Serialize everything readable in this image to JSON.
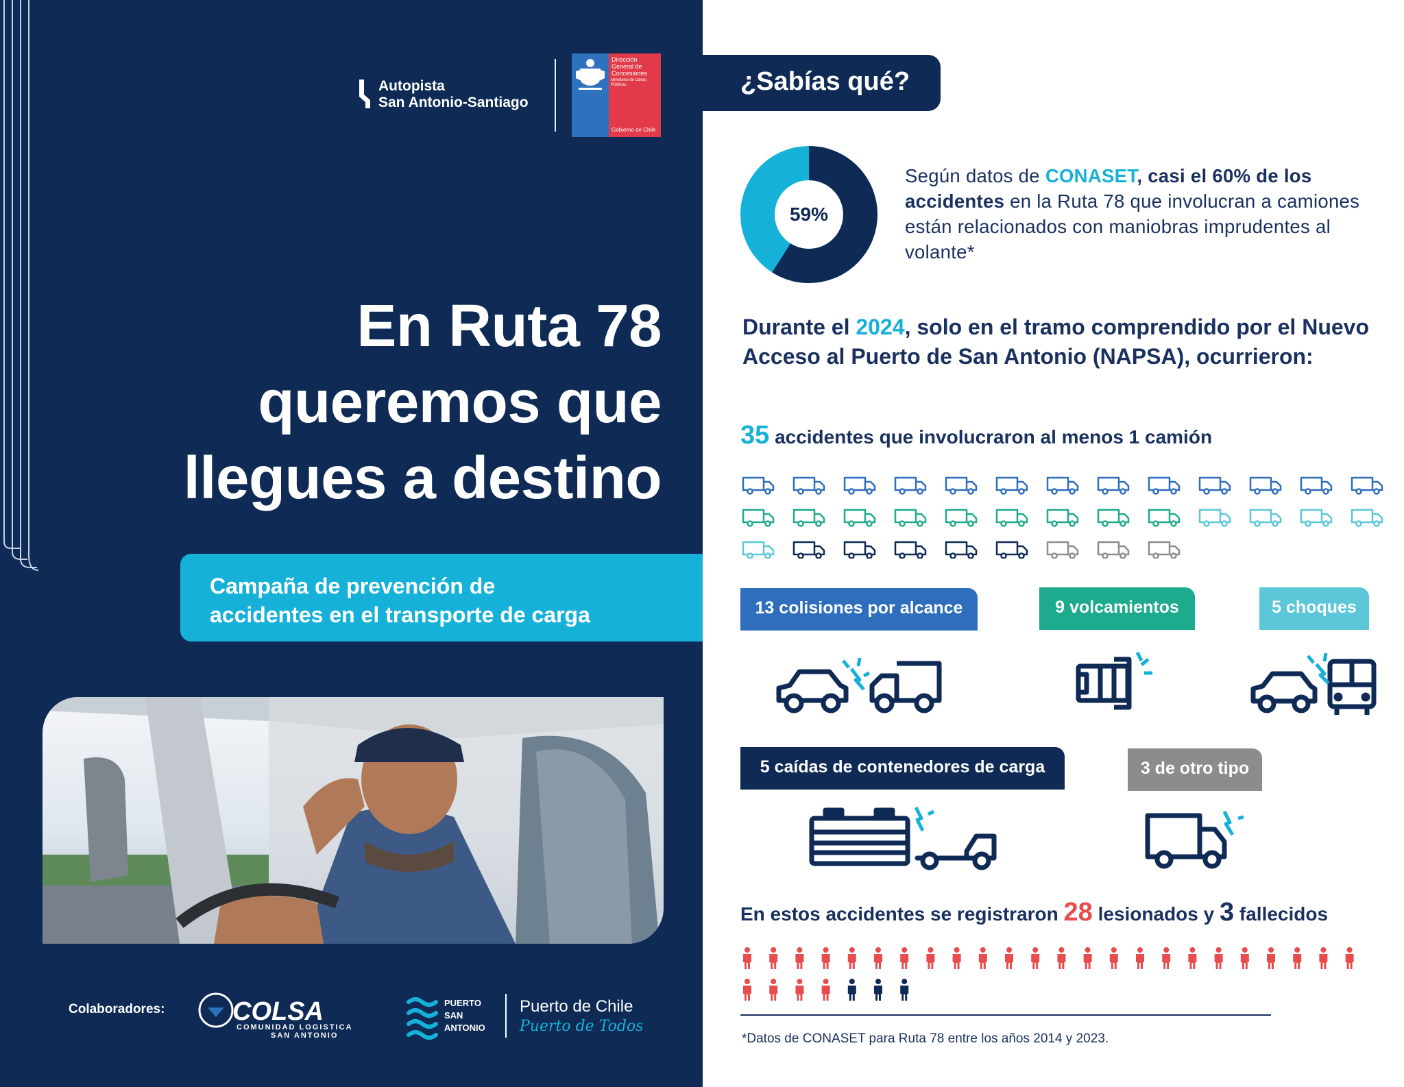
{
  "header": {
    "brand_line1": "Autopista",
    "brand_line2": "San Antonio-Santiago",
    "gov_lines": [
      "Dirección",
      "General de",
      "Concesiones"
    ],
    "gov_ministry": "Ministerio de Obras Públicas",
    "gov_footer": "Gobierno de Chile"
  },
  "hero": {
    "title_lines": [
      "En Ruta 78",
      "queremos que",
      "llegues a destino"
    ],
    "campaign_lines": [
      "Campaña de prevención de",
      "accidentes en el transporte de carga"
    ]
  },
  "collaborators": {
    "label": "Colaboradores:",
    "colsa_name": "COLSA",
    "colsa_sub1": "COMUNIDAD LOGISTICA",
    "colsa_sub2": "SAN ANTONIO",
    "puerto_lines": [
      "PUERTO",
      "SAN",
      "ANTONIO"
    ],
    "puerto_chile": "Puerto de Chile",
    "puerto_todos": "Puerto de Todos"
  },
  "facts": {
    "badge": "¿Sabías qué?",
    "donut_percent": 59,
    "donut_label": "59%",
    "text_pre": "Según datos de ",
    "text_source": "CONASET",
    "text_bold": ", casi el 60% de los accidentes",
    "text_rest": " en la Ruta 78 que involucran a camiones están relacionados con maniobras imprudentes al volante*"
  },
  "period": {
    "pre": "Durante el ",
    "year": "2024",
    "post": ", solo en el tramo comprendido por el Nuevo Acceso al Puerto de San Antonio (NAPSA), ocurrieron:"
  },
  "totals": {
    "count": "35",
    "label": "accidentes que involucraron al menos 1 camión"
  },
  "categories": [
    {
      "label": "13 colisiones por alcance",
      "count": 13,
      "color": "#2f6ebc"
    },
    {
      "label": "9 volcamientos",
      "count": 9,
      "color": "#1eaa8d"
    },
    {
      "label": "5 choques",
      "count": 5,
      "color": "#5bc7d9"
    },
    {
      "label": "5 caídas de contenedores de carga",
      "count": 5,
      "color": "#0e2a55"
    },
    {
      "label": "3 de otro tipo",
      "count": 3,
      "color": "#8c8c8c"
    }
  ],
  "victims": {
    "pre": "En estos accidentes se registraron ",
    "injured": "28",
    "mid": " lesionados y ",
    "dead": "3",
    "post": " fallecidos",
    "injured_count": 28,
    "dead_count": 3,
    "injured_color": "#e84c4c",
    "dead_color": "#0e2a55"
  },
  "footnote": "*Datos de CONASET para Ruta 78 entre los años 2014 y 2023."
}
